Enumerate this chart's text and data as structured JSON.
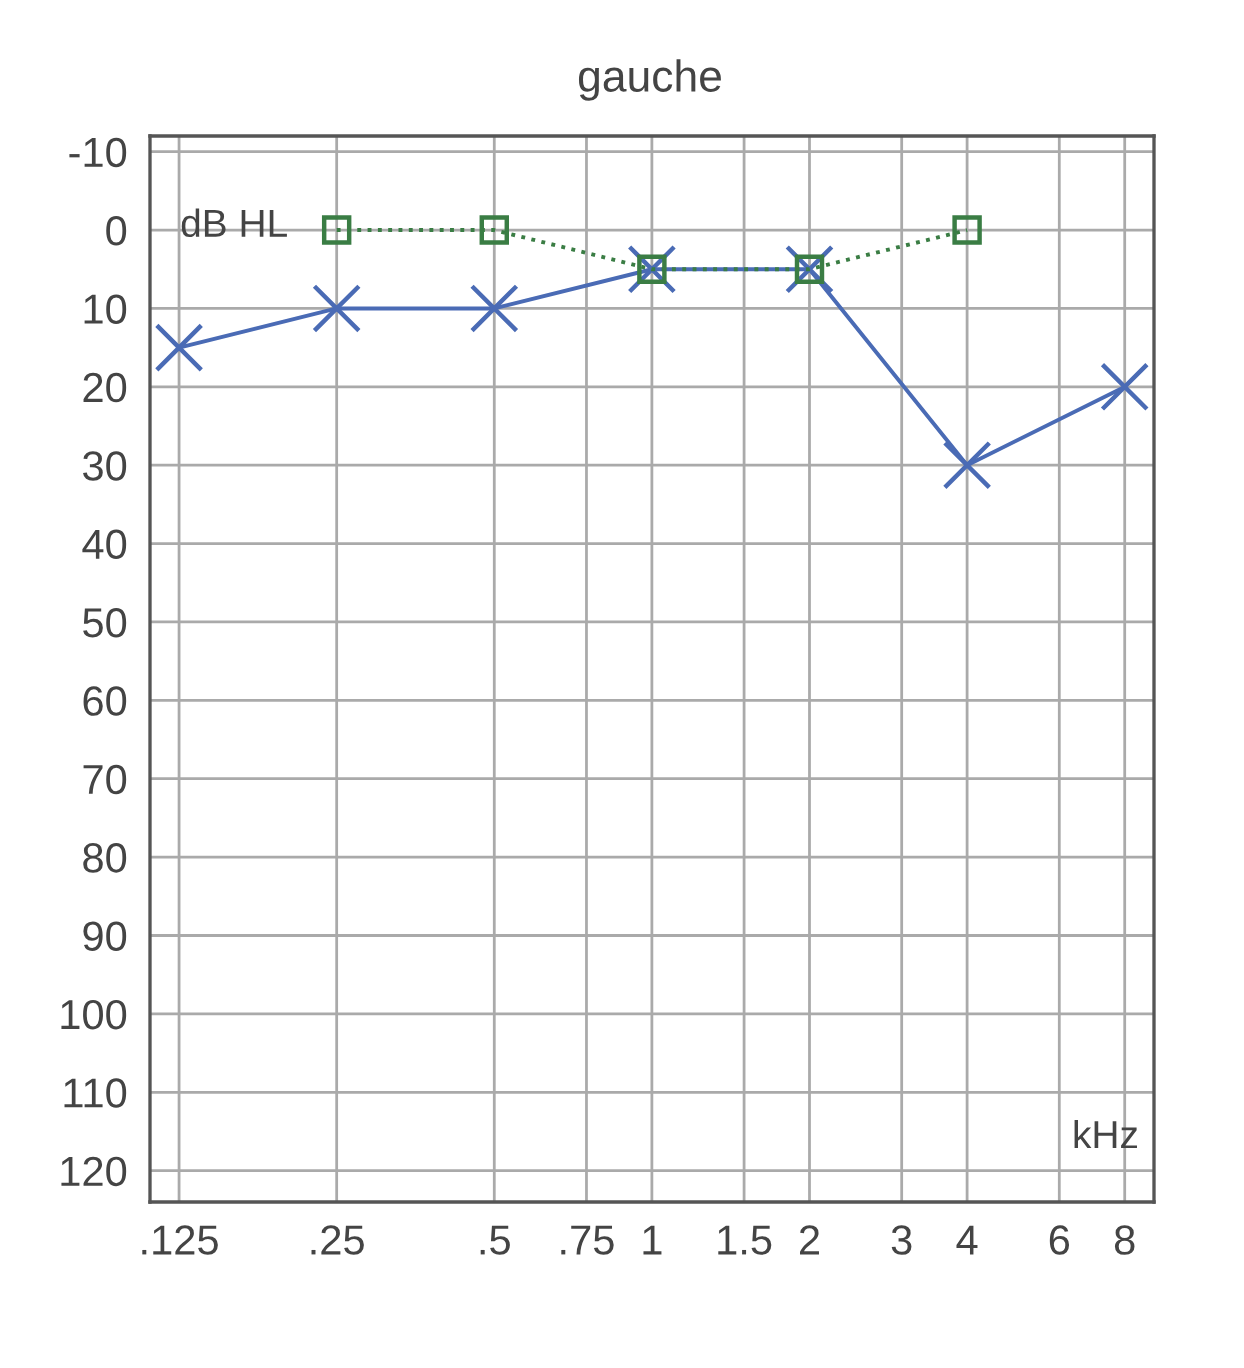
{
  "chart_data": {
    "type": "line",
    "title": "gauche",
    "annotations": [
      "dB HL",
      "kHz"
    ],
    "xlim": [
      0.11,
      9.1
    ],
    "log": "x",
    "xticks": [
      {
        "value": 0.125,
        "label": ".125"
      },
      {
        "value": 0.25,
        "label": ".25"
      },
      {
        "value": 0.5,
        "label": ".5"
      },
      {
        "value": 0.75,
        "label": ".75"
      },
      1,
      1.5,
      2,
      3,
      4,
      6,
      8
    ],
    "ylim": [
      124,
      -12
    ],
    "yticks": [
      -10,
      0,
      10,
      20,
      30,
      40,
      50,
      60,
      70,
      80,
      90,
      100,
      110,
      120
    ],
    "grid": true,
    "series": [
      {
        "color": "#4a6bb5",
        "marker": "cross",
        "line_style": "solid",
        "x": [
          0.125,
          0.25,
          0.5,
          1,
          2,
          4,
          8
        ],
        "values": [
          15,
          10,
          10,
          5,
          5,
          30,
          20
        ]
      },
      {
        "color": "#3a7d44",
        "marker": "square",
        "line_style": "dotted",
        "x": [
          0.25,
          0.5,
          1,
          2,
          4
        ],
        "values": [
          0,
          0,
          5,
          5,
          0
        ]
      }
    ]
  }
}
